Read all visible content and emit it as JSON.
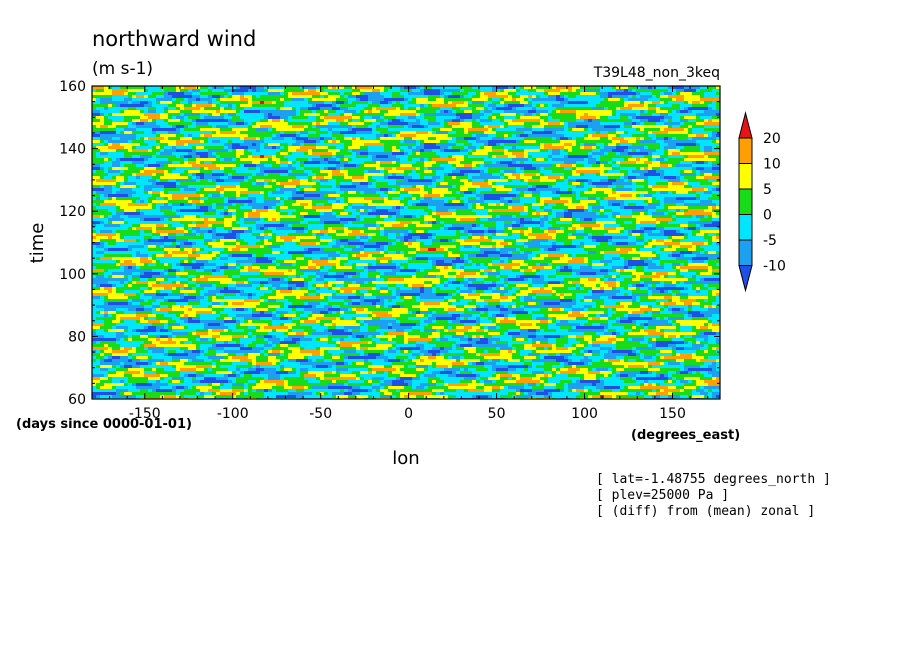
{
  "chart_data": {
    "type": "heatmap",
    "title": "northward wind",
    "units": "(m s-1)",
    "run_label": "T39L48_non_3keq",
    "xlabel": "lon",
    "x_units": "(degrees_east)",
    "ylabel": "time",
    "y_units": "(days since 0000-01-01)",
    "xlim": [
      -180,
      177
    ],
    "ylim": [
      60,
      160
    ],
    "x_ticks": [
      -150,
      -100,
      -50,
      0,
      50,
      100,
      150
    ],
    "x_tick_labels": [
      "-150",
      "-100",
      "-50",
      "0",
      "50",
      "100",
      "150"
    ],
    "y_ticks": [
      60,
      80,
      100,
      120,
      140,
      160
    ],
    "y_tick_labels": [
      "60",
      "80",
      "100",
      "120",
      "140",
      "160"
    ],
    "colorbar": {
      "levels": [
        -10,
        -5,
        0,
        5,
        10,
        20
      ],
      "level_labels": [
        "-10",
        "-5",
        "0",
        "5",
        "10",
        "20"
      ],
      "colors": [
        "#1e50e6",
        "#1ea0f0",
        "#00e6ff",
        "#18dc18",
        "#ffff00",
        "#ffa000",
        "#e61414"
      ],
      "extend": "both"
    },
    "notes": [
      "[ lat=-1.48755 degrees_north ]",
      "[ plev=25000 Pa ]",
      "[ (diff) from (mean) zonal ]"
    ]
  }
}
